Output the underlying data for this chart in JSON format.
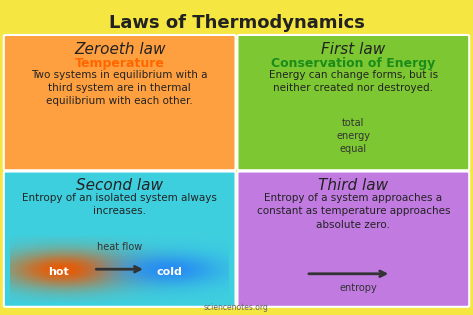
{
  "title": "Laws of Thermodynamics",
  "background_color": "#F5E642",
  "title_color": "#222222",
  "title_fontsize": 13,
  "watermark": "sciencenotes.org",
  "panels": [
    {
      "label": "Zeroeth law",
      "keyword": "Temperature",
      "keyword_color": "#FF6600",
      "text": "Two systems in equilibrium with a\nthird system are in thermal\nequilibrium with each other.",
      "bg_color": "#FFA040",
      "border_color": "#FFB870",
      "text_color": "#222222",
      "label_fontsize": 11,
      "keyword_fontsize": 9,
      "body_fontsize": 7.5
    },
    {
      "label": "First law",
      "keyword": "Conservation of Energy",
      "keyword_color": "#1A8C1A",
      "text": "Energy can change forms, but is\nneither created nor destroyed.",
      "bg_color": "#7DC832",
      "border_color": "#A0D860",
      "text_color": "#222222",
      "label_fontsize": 11,
      "keyword_fontsize": 9,
      "body_fontsize": 7.5,
      "extra_text": "total\nenergy\nequal"
    },
    {
      "label": "Second law",
      "keyword": null,
      "keyword_color": null,
      "text": "Entropy of an isolated system always\nincreases.",
      "bg_color": "#3ECFDF",
      "border_color": "#80E0F0",
      "text_color": "#222222",
      "label_fontsize": 11,
      "keyword_fontsize": 9,
      "body_fontsize": 7.5,
      "heat_flow_label": "heat flow",
      "hot_label": "hot",
      "cold_label": "cold"
    },
    {
      "label": "Third law",
      "keyword": null,
      "keyword_color": null,
      "text": "Entropy of a system approaches a\nconstant as temperature approaches\nabsolute zero.",
      "bg_color": "#C07AE0",
      "border_color": "#D8A0F0",
      "text_color": "#222222",
      "label_fontsize": 11,
      "keyword_fontsize": 9,
      "body_fontsize": 7.5,
      "extra_text": "entropy"
    }
  ],
  "panel_bg_color": "#3ECFDF",
  "hot_color_r": 0.92,
  "hot_color_g": 0.35,
  "hot_color_b": 0.0,
  "cold_color_r": 0.15,
  "cold_color_g": 0.55,
  "cold_color_b": 0.95
}
